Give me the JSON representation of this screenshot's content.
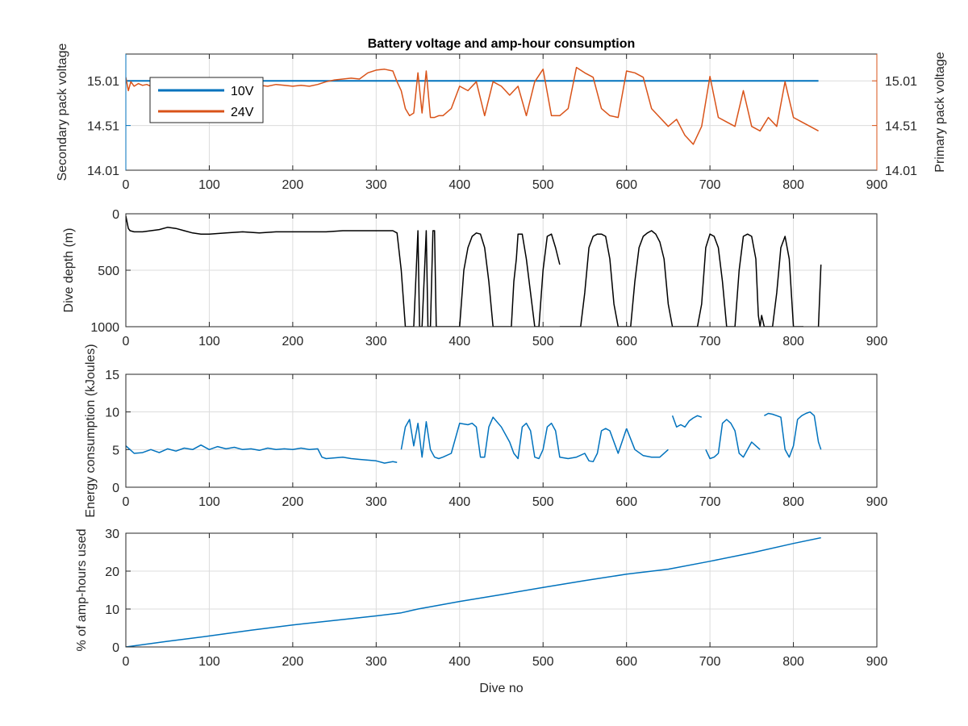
{
  "colors": {
    "blue": "#0072bd",
    "orange": "#d95319",
    "black": "#000000",
    "axis": "#262626",
    "grid": "#dcdcdc"
  },
  "chart_data": [
    {
      "type": "line",
      "title": "Battery voltage and amp-hour consumption",
      "xlabel": "",
      "ylabel_left": "Secondary pack voltage",
      "ylabel_right": "Primary pack voltage",
      "xlim": [
        0,
        900
      ],
      "ylim": [
        14.01,
        15.31
      ],
      "xticks": [
        "0",
        "100",
        "200",
        "300",
        "400",
        "500",
        "600",
        "700",
        "800",
        "900"
      ],
      "yticks_left": [
        "14.01",
        "14.51",
        "15.01"
      ],
      "yticks_right": [
        "14.01",
        "14.51",
        "15.01"
      ],
      "grid": true,
      "legend": {
        "placement": "top-left",
        "entries": [
          "10V",
          "24V"
        ]
      },
      "series": [
        {
          "name": "10V",
          "axis": "left",
          "color": "#0072bd",
          "x": [
            0,
            830
          ],
          "y": [
            15.01,
            15.01
          ]
        },
        {
          "name": "24V",
          "axis": "right",
          "color": "#d95319",
          "x": [
            0,
            3,
            6,
            10,
            15,
            20,
            25,
            30,
            40,
            50,
            60,
            70,
            80,
            90,
            100,
            110,
            120,
            130,
            140,
            150,
            160,
            170,
            180,
            190,
            200,
            210,
            220,
            230,
            240,
            250,
            260,
            270,
            280,
            290,
            300,
            310,
            320,
            325,
            330,
            335,
            340,
            345,
            350,
            355,
            360,
            365,
            370,
            375,
            380,
            390,
            400,
            410,
            420,
            430,
            440,
            450,
            460,
            470,
            480,
            490,
            500,
            510,
            520,
            530,
            540,
            550,
            560,
            570,
            580,
            590,
            600,
            610,
            620,
            630,
            640,
            650,
            660,
            670,
            680,
            690,
            700,
            710,
            720,
            730,
            740,
            750,
            760,
            770,
            780,
            790,
            800,
            810,
            820,
            830
          ],
          "y": [
            15.05,
            14.9,
            15.0,
            14.95,
            14.98,
            14.96,
            14.97,
            14.95,
            14.96,
            14.97,
            14.95,
            14.96,
            14.94,
            14.95,
            14.96,
            14.95,
            14.97,
            14.95,
            14.94,
            14.95,
            14.96,
            14.95,
            14.97,
            14.96,
            14.95,
            14.96,
            14.95,
            14.97,
            15.0,
            15.02,
            15.03,
            15.04,
            15.03,
            15.1,
            15.13,
            15.14,
            15.12,
            15.0,
            14.9,
            14.7,
            14.62,
            14.65,
            15.1,
            14.65,
            15.12,
            14.6,
            14.6,
            14.62,
            14.62,
            14.7,
            14.95,
            14.9,
            15.0,
            14.62,
            15.0,
            14.95,
            14.85,
            14.95,
            14.62,
            15.0,
            15.14,
            14.62,
            14.62,
            14.7,
            15.16,
            15.1,
            15.05,
            14.7,
            14.62,
            14.6,
            15.12,
            15.1,
            15.05,
            14.7,
            14.6,
            14.5,
            14.58,
            14.4,
            14.3,
            14.5,
            15.06,
            14.6,
            14.55,
            14.5,
            14.9,
            14.5,
            14.45,
            14.6,
            14.5,
            15.0,
            14.6,
            14.55,
            14.5,
            14.45
          ]
        }
      ]
    },
    {
      "type": "line",
      "title": "",
      "xlabel": "",
      "ylabel": "Dive depth (m)",
      "xlim": [
        0,
        900
      ],
      "ylim": [
        1000,
        0
      ],
      "xticks": [
        "0",
        "100",
        "200",
        "300",
        "400",
        "500",
        "600",
        "700",
        "800",
        "900"
      ],
      "yticks": [
        "0",
        "500",
        "1000"
      ],
      "grid": true,
      "series": [
        {
          "color": "#000000",
          "x": [
            0,
            3,
            5,
            10,
            20,
            30,
            40,
            50,
            60,
            70,
            80,
            90,
            100,
            120,
            140,
            160,
            180,
            200,
            220,
            240,
            260,
            280,
            300,
            320,
            325,
            330,
            335,
            340,
            345,
            348,
            350,
            352,
            355,
            358,
            360,
            362,
            365,
            368,
            370,
            372,
            375,
            380,
            390,
            400,
            405,
            410,
            415,
            420,
            425,
            430,
            435,
            440,
            460,
            462,
            465,
            468,
            470,
            475,
            480,
            485,
            490,
            495,
            500,
            505,
            510,
            515,
            520
          ],
          "y": [
            20,
            130,
            150,
            160,
            160,
            150,
            140,
            120,
            130,
            150,
            170,
            180,
            180,
            170,
            160,
            170,
            160,
            160,
            160,
            160,
            150,
            150,
            150,
            150,
            170,
            500,
            1000,
            1000,
            1000,
            500,
            150,
            1000,
            1000,
            500,
            150,
            1000,
            1000,
            150,
            150,
            1000,
            1000,
            1000,
            1000,
            1000,
            500,
            300,
            200,
            170,
            180,
            300,
            600,
            1000,
            1000,
            1000,
            600,
            400,
            180,
            180,
            400,
            700,
            1000,
            1000,
            500,
            200,
            180,
            300,
            450
          ]
        },
        {
          "color": "#000000",
          "x": [
            520,
            525,
            530,
            535,
            540,
            545,
            550,
            555,
            560,
            565,
            570,
            575,
            580,
            585,
            590,
            595,
            600,
            605,
            610,
            615,
            620,
            625,
            630,
            635,
            640,
            645,
            650,
            655,
            660,
            670,
            680,
            685,
            690,
            695,
            700,
            705,
            710,
            715,
            720,
            730,
            735,
            740,
            745,
            750,
            755,
            758,
            760,
            762,
            765,
            770,
            775,
            780,
            785,
            790,
            795,
            800,
            805,
            810,
            812
          ],
          "y": [
            1000,
            1000,
            1000,
            1000,
            1000,
            1000,
            700,
            300,
            200,
            180,
            180,
            200,
            400,
            800,
            1000,
            1000,
            1000,
            1000,
            600,
            300,
            200,
            170,
            150,
            180,
            250,
            400,
            800,
            1000,
            1000,
            1000,
            1000,
            1000,
            800,
            300,
            180,
            200,
            300,
            600,
            1000,
            1000,
            500,
            200,
            180,
            200,
            400,
            900,
            1000,
            900,
            1000,
            1000,
            1000,
            700,
            300,
            200,
            400,
            1000,
            1000,
            1000,
            1000
          ]
        },
        {
          "color": "#000000",
          "x": [
            830,
            833
          ],
          "y": [
            1000,
            450
          ]
        }
      ]
    },
    {
      "type": "line",
      "title": "",
      "xlabel": "",
      "ylabel": "Energy consumption (kJoules)",
      "xlim": [
        0,
        900
      ],
      "ylim": [
        0,
        15
      ],
      "xticks": [
        "0",
        "100",
        "200",
        "300",
        "400",
        "500",
        "600",
        "700",
        "800",
        "900"
      ],
      "yticks": [
        "0",
        "5",
        "10",
        "15"
      ],
      "grid": true,
      "series": [
        {
          "color": "#0072bd",
          "x": [
            0,
            5,
            10,
            20,
            30,
            40,
            50,
            60,
            70,
            80,
            90,
            100,
            110,
            120,
            130,
            140,
            150,
            160,
            170,
            180,
            190,
            200,
            210,
            220,
            230,
            235,
            240,
            250,
            260,
            270,
            280,
            290,
            300,
            310,
            320,
            325
          ],
          "y": [
            5.5,
            5.0,
            4.5,
            4.6,
            5.0,
            4.6,
            5.1,
            4.8,
            5.2,
            5.0,
            5.6,
            5.0,
            5.4,
            5.1,
            5.3,
            5.0,
            5.1,
            4.9,
            5.2,
            5.0,
            5.1,
            5.0,
            5.2,
            5.0,
            5.1,
            4.0,
            3.8,
            3.9,
            4.0,
            3.8,
            3.7,
            3.6,
            3.5,
            3.2,
            3.4,
            3.3
          ]
        },
        {
          "color": "#0072bd",
          "x": [
            330,
            335,
            340,
            345,
            350,
            355,
            360,
            365,
            370,
            375,
            380,
            390,
            400,
            410,
            415,
            420,
            425,
            430,
            435,
            440,
            450,
            460,
            465,
            470,
            475,
            480,
            485,
            490,
            495,
            500,
            505,
            510,
            515,
            520,
            525,
            530,
            540,
            550,
            555,
            560,
            565,
            570,
            575,
            580,
            590,
            600
          ],
          "y": [
            5.0,
            8.0,
            9.0,
            5.5,
            8.5,
            4.0,
            8.7,
            5.0,
            4.0,
            3.8,
            4.0,
            4.5,
            8.5,
            8.3,
            8.5,
            8.0,
            4.0,
            4.0,
            8.0,
            9.3,
            8.0,
            6.0,
            4.5,
            3.8,
            8.0,
            8.5,
            7.5,
            4.0,
            3.8,
            5.0,
            8.0,
            8.5,
            7.5,
            4.0,
            3.9,
            3.8,
            4.0,
            4.5,
            3.5,
            3.4,
            4.5,
            7.5,
            7.8,
            7.5,
            4.5,
            7.8
          ]
        },
        {
          "color": "#0072bd",
          "x": [
            600,
            610,
            620,
            630,
            640,
            650
          ],
          "y": [
            7.8,
            5.0,
            4.2,
            4.0,
            4.0,
            5.0
          ]
        },
        {
          "color": "#0072bd",
          "x": [
            655,
            660,
            665,
            670,
            675,
            680,
            685,
            690
          ],
          "y": [
            9.5,
            8.0,
            8.3,
            8.0,
            8.8,
            9.2,
            9.5,
            9.3
          ]
        },
        {
          "color": "#0072bd",
          "x": [
            695,
            700,
            705,
            710,
            715,
            720,
            725,
            730,
            735,
            740,
            745,
            750,
            755,
            760
          ],
          "y": [
            5.0,
            3.8,
            4.0,
            4.5,
            8.5,
            9.0,
            8.5,
            7.5,
            4.5,
            4.0,
            5.0,
            6.0,
            5.5,
            5.0
          ]
        },
        {
          "color": "#0072bd",
          "x": [
            765,
            770,
            775,
            780,
            785,
            790,
            795,
            800,
            805,
            810,
            815,
            820,
            825,
            830,
            833
          ],
          "y": [
            9.5,
            9.8,
            9.7,
            9.5,
            9.3,
            5.0,
            4.0,
            5.5,
            9.0,
            9.5,
            9.8,
            10.0,
            9.5,
            6.0,
            5.0
          ]
        }
      ]
    },
    {
      "type": "line",
      "title": "",
      "xlabel": "Dive no",
      "ylabel": "% of amp-hours used",
      "xlim": [
        0,
        900
      ],
      "ylim": [
        0,
        30
      ],
      "xticks": [
        "0",
        "100",
        "200",
        "300",
        "400",
        "500",
        "600",
        "700",
        "800",
        "900"
      ],
      "yticks": [
        "0",
        "10",
        "20",
        "30"
      ],
      "grid": true,
      "series": [
        {
          "color": "#0072bd",
          "x": [
            0,
            50,
            100,
            150,
            200,
            250,
            300,
            330,
            350,
            400,
            450,
            500,
            550,
            600,
            650,
            700,
            750,
            800,
            833
          ],
          "y": [
            0,
            1.5,
            2.9,
            4.4,
            5.8,
            7.0,
            8.2,
            9.0,
            10.0,
            12.0,
            13.8,
            15.7,
            17.5,
            19.2,
            20.5,
            22.6,
            24.8,
            27.3,
            28.8
          ]
        }
      ]
    }
  ]
}
